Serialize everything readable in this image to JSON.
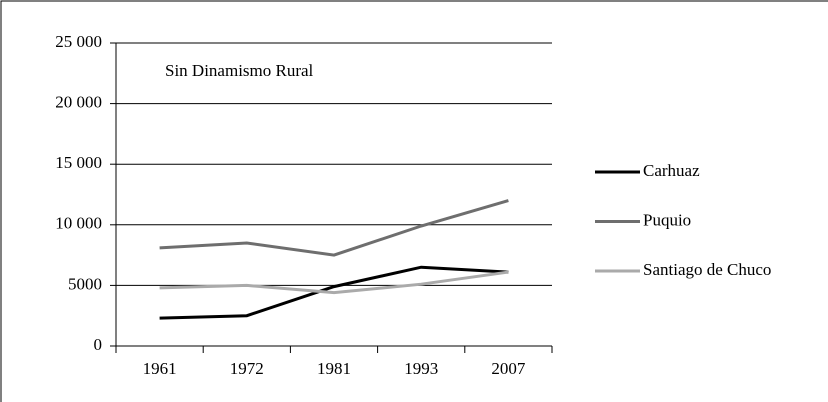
{
  "chart_data": {
    "type": "line",
    "annotation": "Sin Dinamismo Rural",
    "categories": [
      "1961",
      "1972",
      "1981",
      "1993",
      "2007"
    ],
    "series": [
      {
        "name": "Carhuaz",
        "color": "#000000",
        "values": [
          2300,
          2500,
          4900,
          6500,
          6100
        ]
      },
      {
        "name": "Puquio",
        "color": "#6e6e6e",
        "values": [
          8100,
          8500,
          7500,
          9900,
          12000
        ]
      },
      {
        "name": "Santiago de Chuco",
        "color": "#aaaaaa",
        "values": [
          4800,
          5000,
          4400,
          5100,
          6100
        ]
      }
    ],
    "ylim": [
      0,
      25000
    ],
    "yticks": [
      0,
      5000,
      {
        "value": 10000,
        "label": "10 000"
      },
      {
        "value": 15000,
        "label": "15 000"
      },
      {
        "value": 20000,
        "label": "20 000"
      },
      {
        "value": 25000,
        "label": "25 000"
      }
    ],
    "grid": true,
    "legend": "right"
  }
}
